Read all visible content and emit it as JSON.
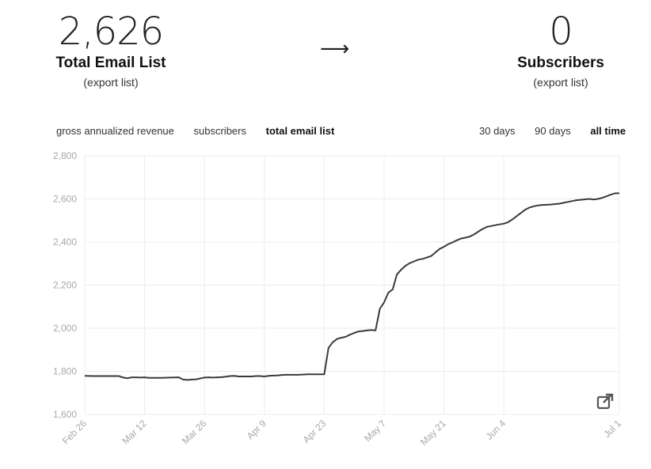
{
  "left_stat": {
    "value": "2,626",
    "label": "Total Email List",
    "link": "(export list)"
  },
  "arrow": "⟶",
  "right_stat": {
    "value": "0",
    "label": "Subscribers",
    "link": "(export list)"
  },
  "metric_tabs": [
    {
      "label": "gross annualized revenue",
      "active": false
    },
    {
      "label": "subscribers",
      "active": false
    },
    {
      "label": "total email list",
      "active": true
    }
  ],
  "range_tabs": [
    {
      "label": "30 days",
      "active": false
    },
    {
      "label": "90 days",
      "active": false
    },
    {
      "label": "all time",
      "active": true
    }
  ],
  "icons": {
    "external_link": "external-link-icon"
  },
  "chart_data": {
    "type": "line",
    "title": "",
    "xlabel": "",
    "ylabel": "",
    "ylim": [
      1600,
      2800
    ],
    "yticks": [
      1600,
      1800,
      2000,
      2200,
      2400,
      2600,
      2800
    ],
    "ytick_labels": [
      "1,600",
      "1,800",
      "2,000",
      "2,200",
      "2,400",
      "2,600",
      "2,800"
    ],
    "xticks": [
      "Feb 26",
      "Mar 12",
      "Mar 26",
      "Apr 9",
      "Apr 23",
      "May 7",
      "May 21",
      "Jun 4",
      "Jul 1"
    ],
    "xtick_days": [
      0,
      14,
      28,
      42,
      56,
      70,
      84,
      98,
      125
    ],
    "grid": true,
    "line_color": "#3a3a3a",
    "series": [
      {
        "x": [
          0,
          2,
          4,
          6,
          8,
          9,
          10,
          11,
          12,
          13,
          14,
          15,
          16,
          18,
          20,
          22,
          23,
          24,
          25,
          26,
          27,
          28,
          29,
          30,
          31,
          32,
          33,
          34,
          35,
          36,
          37,
          38,
          39,
          40,
          41,
          42,
          43,
          44,
          45,
          46,
          47,
          48,
          49,
          50,
          51,
          52,
          53,
          54,
          55,
          56,
          57,
          58,
          59,
          60,
          61,
          62,
          63,
          64,
          65,
          66,
          67,
          68,
          69,
          70,
          71,
          72,
          73,
          74,
          75,
          76,
          77,
          78,
          79,
          80,
          81,
          82,
          83,
          84,
          85,
          86,
          87,
          88,
          89,
          90,
          91,
          92,
          93,
          94,
          95,
          96,
          97,
          98,
          99,
          100,
          101,
          102,
          103,
          104,
          105,
          106,
          107,
          108,
          109,
          110,
          111,
          112,
          113,
          114,
          115,
          116,
          117,
          118,
          119,
          120,
          121,
          122,
          123,
          124,
          125
        ],
        "y": [
          1779,
          1778,
          1778,
          1778,
          1778,
          1771,
          1768,
          1772,
          1772,
          1771,
          1772,
          1770,
          1770,
          1770,
          1771,
          1772,
          1762,
          1760,
          1762,
          1763,
          1767,
          1771,
          1772,
          1771,
          1772,
          1773,
          1775,
          1778,
          1779,
          1776,
          1776,
          1776,
          1776,
          1778,
          1778,
          1776,
          1779,
          1780,
          1781,
          1783,
          1784,
          1784,
          1784,
          1784,
          1785,
          1786,
          1786,
          1786,
          1786,
          1786,
          1909,
          1935,
          1950,
          1956,
          1960,
          1970,
          1978,
          1985,
          1987,
          1990,
          1992,
          1990,
          2090,
          2120,
          2165,
          2180,
          2250,
          2272,
          2290,
          2302,
          2310,
          2318,
          2322,
          2328,
          2335,
          2352,
          2368,
          2378,
          2390,
          2398,
          2408,
          2416,
          2420,
          2425,
          2435,
          2448,
          2460,
          2470,
          2474,
          2478,
          2482,
          2485,
          2492,
          2505,
          2520,
          2535,
          2550,
          2560,
          2566,
          2570,
          2572,
          2573,
          2574,
          2576,
          2578,
          2582,
          2586,
          2590,
          2594,
          2596,
          2598,
          2600,
          2597,
          2600,
          2605,
          2612,
          2620,
          2626,
          2626
        ]
      }
    ]
  }
}
